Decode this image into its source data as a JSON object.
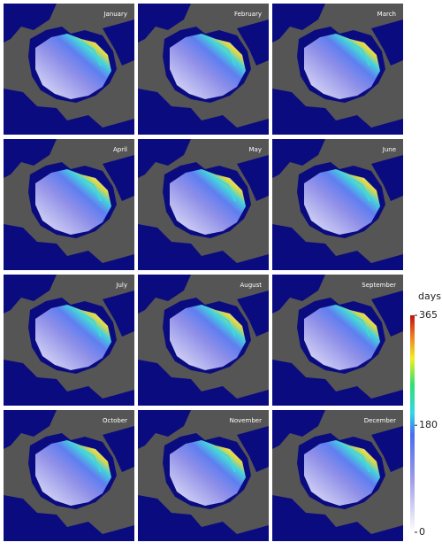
{
  "panels": [
    {
      "title": "January"
    },
    {
      "title": "February"
    },
    {
      "title": "March"
    },
    {
      "title": "April"
    },
    {
      "title": "May"
    },
    {
      "title": "June"
    },
    {
      "title": "July"
    },
    {
      "title": "August"
    },
    {
      "title": "September"
    },
    {
      "title": "October"
    },
    {
      "title": "November"
    },
    {
      "title": "December"
    }
  ],
  "colorbar": {
    "label": "days",
    "ticks": [
      0,
      180,
      365
    ]
  }
}
